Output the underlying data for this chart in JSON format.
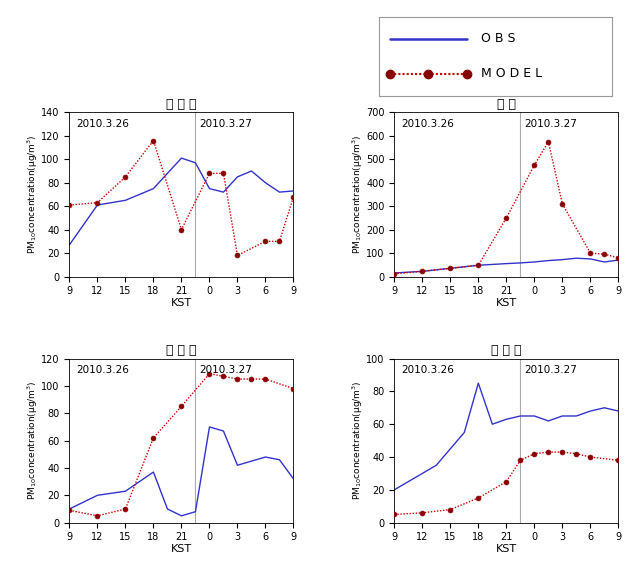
{
  "subplots": [
    {
      "title": "백 형 도",
      "ylim": [
        0,
        140
      ],
      "yticks": [
        0,
        20,
        40,
        60,
        80,
        100,
        120,
        140
      ],
      "obs_x": [
        0,
        1,
        2,
        3,
        4,
        4.5,
        5,
        5.5,
        6,
        6.5,
        7,
        7.5,
        8
      ],
      "obs_y": [
        27,
        61,
        65,
        75,
        101,
        97,
        75,
        72,
        85,
        90,
        80,
        72,
        73
      ],
      "model_x": [
        0,
        1,
        2,
        3,
        4,
        5,
        5.5,
        6,
        7,
        7.5,
        8
      ],
      "model_y": [
        61,
        63,
        85,
        116,
        40,
        88,
        88,
        18,
        30,
        30,
        68
      ]
    },
    {
      "title": "서 울",
      "ylim": [
        0,
        700
      ],
      "yticks": [
        0,
        100,
        200,
        300,
        400,
        500,
        600,
        700
      ],
      "obs_x": [
        0,
        1,
        2,
        3,
        4,
        4.5,
        5,
        5.5,
        6,
        6.5,
        7,
        7.5,
        8
      ],
      "obs_y": [
        15,
        22,
        35,
        48,
        55,
        58,
        62,
        68,
        72,
        78,
        75,
        62,
        70
      ],
      "model_x": [
        0,
        1,
        2,
        3,
        4,
        5,
        5.5,
        6,
        7,
        7.5,
        8
      ],
      "model_y": [
        12,
        22,
        35,
        48,
        250,
        475,
        575,
        310,
        100,
        95,
        80
      ]
    },
    {
      "title": "울 릉 도",
      "ylim": [
        0,
        120
      ],
      "yticks": [
        0,
        20,
        40,
        60,
        80,
        100,
        120
      ],
      "obs_x": [
        0,
        0.5,
        1,
        2,
        3,
        3.5,
        4,
        4.5,
        5,
        5.5,
        6,
        6.5,
        7,
        7.5,
        8
      ],
      "obs_y": [
        10,
        15,
        20,
        23,
        37,
        10,
        5,
        8,
        70,
        67,
        42,
        45,
        48,
        46,
        32
      ],
      "model_x": [
        0,
        1,
        2,
        3,
        4,
        5,
        5.5,
        6,
        6.5,
        7,
        8
      ],
      "model_y": [
        9,
        5,
        10,
        62,
        85,
        109,
        107,
        105,
        105,
        105,
        98
      ]
    },
    {
      "title": "추 풍 령",
      "ylim": [
        0,
        100
      ],
      "yticks": [
        0,
        20,
        40,
        60,
        80,
        100
      ],
      "obs_x": [
        0,
        0.5,
        1,
        1.5,
        2,
        2.5,
        3,
        3.5,
        4,
        4.5,
        5,
        5.5,
        6,
        6.5,
        7,
        7.5,
        8
      ],
      "obs_y": [
        20,
        25,
        30,
        35,
        45,
        55,
        85,
        60,
        63,
        65,
        65,
        62,
        65,
        65,
        68,
        70,
        68
      ],
      "model_x": [
        0,
        1,
        2,
        3,
        4,
        4.5,
        5,
        5.5,
        6,
        6.5,
        7,
        8
      ],
      "model_y": [
        5,
        6,
        8,
        15,
        25,
        38,
        42,
        43,
        43,
        42,
        40,
        38
      ]
    }
  ],
  "xtick_positions": [
    0,
    1,
    2,
    3,
    4,
    5,
    6,
    7,
    8
  ],
  "xtick_labels": [
    "9",
    "12",
    "15",
    "18",
    "21",
    "0",
    "3",
    "6",
    "9"
  ],
  "obs_color": "#3333cc",
  "model_color": "#cc0000",
  "model_dot_color": "#880000",
  "vline_color": "#aaaaaa",
  "date1_text": "2010.3.26",
  "date2_text": "2010.3.27",
  "legend_obs": "O B S",
  "legend_model": "M O D E L",
  "xlabel": "KST",
  "ylabel": "PM$_{10}$concentration(μg/m$^3$)"
}
